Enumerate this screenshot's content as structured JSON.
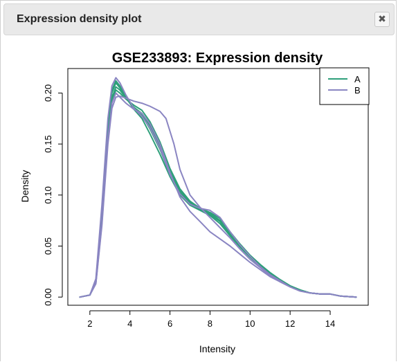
{
  "dialog": {
    "title": "Expression density plot",
    "close_icon": "close-icon",
    "close_glyph": "✖"
  },
  "chart_data": {
    "type": "line",
    "title": "GSE233893: Expression density",
    "xlabel": "Intensity",
    "ylabel": "Density",
    "xlim": [
      0.9,
      15.9
    ],
    "ylim": [
      -0.008,
      0.224
    ],
    "xticks": [
      "2",
      "4",
      "6",
      "8",
      "10",
      "12",
      "14"
    ],
    "yticks": [
      "0.00",
      "0.05",
      "0.10",
      "0.15",
      "0.20"
    ],
    "legend_position": "top-right",
    "legend": [
      {
        "name": "A",
        "color": "#2E9F7A"
      },
      {
        "name": "B",
        "color": "#8A85C2"
      }
    ],
    "series": [
      {
        "name": "A",
        "color": "#2E9F7A",
        "points": [
          [
            1.5,
            0
          ],
          [
            2.0,
            0.002
          ],
          [
            2.3,
            0.015
          ],
          [
            2.6,
            0.08
          ],
          [
            2.9,
            0.165
          ],
          [
            3.1,
            0.2
          ],
          [
            3.3,
            0.21
          ],
          [
            3.5,
            0.205
          ],
          [
            3.8,
            0.195
          ],
          [
            4.2,
            0.185
          ],
          [
            4.6,
            0.178
          ],
          [
            5.0,
            0.165
          ],
          [
            5.5,
            0.145
          ],
          [
            6.0,
            0.12
          ],
          [
            6.5,
            0.102
          ],
          [
            7.0,
            0.092
          ],
          [
            7.5,
            0.086
          ],
          [
            8.0,
            0.082
          ],
          [
            8.5,
            0.075
          ],
          [
            9.0,
            0.062
          ],
          [
            9.5,
            0.05
          ],
          [
            10.0,
            0.04
          ],
          [
            10.5,
            0.031
          ],
          [
            11.0,
            0.023
          ],
          [
            11.5,
            0.017
          ],
          [
            12.0,
            0.011
          ],
          [
            12.5,
            0.007
          ],
          [
            13.0,
            0.004
          ],
          [
            13.5,
            0.003
          ],
          [
            14.0,
            0.003
          ],
          [
            14.5,
            0.001
          ],
          [
            15.3,
            0
          ]
        ]
      },
      {
        "name": "A",
        "color": "#2E9F7A",
        "points": [
          [
            1.5,
            0
          ],
          [
            2.0,
            0.002
          ],
          [
            2.3,
            0.016
          ],
          [
            2.6,
            0.085
          ],
          [
            2.9,
            0.17
          ],
          [
            3.1,
            0.203
          ],
          [
            3.3,
            0.212
          ],
          [
            3.5,
            0.207
          ],
          [
            3.8,
            0.196
          ],
          [
            4.2,
            0.184
          ],
          [
            4.6,
            0.175
          ],
          [
            5.0,
            0.16
          ],
          [
            5.5,
            0.14
          ],
          [
            6.0,
            0.118
          ],
          [
            6.5,
            0.1
          ],
          [
            7.0,
            0.09
          ],
          [
            7.5,
            0.085
          ],
          [
            8.0,
            0.08
          ],
          [
            8.5,
            0.072
          ],
          [
            9.0,
            0.06
          ],
          [
            9.5,
            0.049
          ],
          [
            10.0,
            0.039
          ],
          [
            10.5,
            0.03
          ],
          [
            11.0,
            0.022
          ],
          [
            11.5,
            0.016
          ],
          [
            12.0,
            0.011
          ],
          [
            12.5,
            0.007
          ],
          [
            13.0,
            0.004
          ],
          [
            13.5,
            0.003
          ],
          [
            14.0,
            0.003
          ],
          [
            14.5,
            0.001
          ],
          [
            15.3,
            0
          ]
        ]
      },
      {
        "name": "A",
        "color": "#2E9F7A",
        "points": [
          [
            1.5,
            0
          ],
          [
            2.0,
            0.002
          ],
          [
            2.3,
            0.014
          ],
          [
            2.6,
            0.075
          ],
          [
            2.9,
            0.158
          ],
          [
            3.1,
            0.192
          ],
          [
            3.3,
            0.203
          ],
          [
            3.5,
            0.2
          ],
          [
            3.8,
            0.194
          ],
          [
            4.2,
            0.188
          ],
          [
            4.6,
            0.183
          ],
          [
            5.0,
            0.172
          ],
          [
            5.5,
            0.152
          ],
          [
            6.0,
            0.126
          ],
          [
            6.5,
            0.106
          ],
          [
            7.0,
            0.094
          ],
          [
            7.5,
            0.087
          ],
          [
            8.0,
            0.083
          ],
          [
            8.5,
            0.077
          ],
          [
            9.0,
            0.064
          ],
          [
            9.5,
            0.052
          ],
          [
            10.0,
            0.041
          ],
          [
            10.5,
            0.032
          ],
          [
            11.0,
            0.024
          ],
          [
            11.5,
            0.017
          ],
          [
            12.0,
            0.011
          ],
          [
            12.5,
            0.007
          ],
          [
            13.0,
            0.004
          ],
          [
            13.5,
            0.003
          ],
          [
            14.0,
            0.003
          ],
          [
            14.5,
            0.001
          ],
          [
            15.3,
            0
          ]
        ]
      },
      {
        "name": "A",
        "color": "#2E9F7A",
        "points": [
          [
            1.5,
            0
          ],
          [
            2.0,
            0.002
          ],
          [
            2.3,
            0.015
          ],
          [
            2.6,
            0.078
          ],
          [
            2.9,
            0.16
          ],
          [
            3.1,
            0.195
          ],
          [
            3.3,
            0.206
          ],
          [
            3.5,
            0.203
          ],
          [
            3.8,
            0.195
          ],
          [
            4.2,
            0.186
          ],
          [
            4.6,
            0.18
          ],
          [
            5.0,
            0.168
          ],
          [
            5.5,
            0.148
          ],
          [
            6.0,
            0.123
          ],
          [
            6.5,
            0.104
          ],
          [
            7.0,
            0.093
          ],
          [
            7.5,
            0.086
          ],
          [
            8.0,
            0.081
          ],
          [
            8.5,
            0.074
          ],
          [
            9.0,
            0.061
          ],
          [
            9.5,
            0.05
          ],
          [
            10.0,
            0.04
          ],
          [
            10.5,
            0.031
          ],
          [
            11.0,
            0.023
          ],
          [
            11.5,
            0.017
          ],
          [
            12.0,
            0.011
          ],
          [
            12.5,
            0.007
          ],
          [
            13.0,
            0.004
          ],
          [
            13.5,
            0.003
          ],
          [
            14.0,
            0.003
          ],
          [
            14.5,
            0.001
          ],
          [
            15.3,
            0
          ]
        ]
      },
      {
        "name": "B",
        "color": "#8A85C2",
        "points": [
          [
            1.5,
            0
          ],
          [
            2.0,
            0.002
          ],
          [
            2.3,
            0.018
          ],
          [
            2.6,
            0.09
          ],
          [
            2.9,
            0.175
          ],
          [
            3.1,
            0.207
          ],
          [
            3.3,
            0.215
          ],
          [
            3.5,
            0.21
          ],
          [
            3.8,
            0.198
          ],
          [
            4.2,
            0.185
          ],
          [
            4.6,
            0.177
          ],
          [
            5.0,
            0.166
          ],
          [
            5.5,
            0.146
          ],
          [
            6.0,
            0.12
          ],
          [
            6.5,
            0.101
          ],
          [
            7.0,
            0.091
          ],
          [
            7.5,
            0.087
          ],
          [
            8.0,
            0.085
          ],
          [
            8.5,
            0.078
          ],
          [
            9.0,
            0.064
          ],
          [
            9.5,
            0.051
          ],
          [
            10.0,
            0.04
          ],
          [
            10.5,
            0.03
          ],
          [
            11.0,
            0.022
          ],
          [
            11.5,
            0.016
          ],
          [
            12.0,
            0.01
          ],
          [
            12.5,
            0.006
          ],
          [
            13.0,
            0.004
          ],
          [
            13.5,
            0.003
          ],
          [
            14.0,
            0.003
          ],
          [
            14.5,
            0.001
          ],
          [
            15.3,
            0
          ]
        ]
      },
      {
        "name": "B",
        "color": "#8A85C2",
        "points": [
          [
            1.5,
            0
          ],
          [
            2.0,
            0.002
          ],
          [
            2.3,
            0.013
          ],
          [
            2.6,
            0.07
          ],
          [
            2.9,
            0.15
          ],
          [
            3.1,
            0.185
          ],
          [
            3.3,
            0.196
          ],
          [
            3.5,
            0.197
          ],
          [
            3.8,
            0.195
          ],
          [
            4.2,
            0.192
          ],
          [
            4.6,
            0.19
          ],
          [
            5.0,
            0.187
          ],
          [
            5.5,
            0.182
          ],
          [
            5.8,
            0.175
          ],
          [
            6.2,
            0.15
          ],
          [
            6.5,
            0.125
          ],
          [
            7.0,
            0.1
          ],
          [
            7.5,
            0.088
          ],
          [
            8.0,
            0.078
          ],
          [
            8.5,
            0.068
          ],
          [
            9.0,
            0.058
          ],
          [
            9.5,
            0.047
          ],
          [
            10.0,
            0.037
          ],
          [
            10.5,
            0.029
          ],
          [
            11.0,
            0.021
          ],
          [
            11.5,
            0.015
          ],
          [
            12.0,
            0.01
          ],
          [
            12.5,
            0.006
          ],
          [
            13.0,
            0.004
          ],
          [
            13.5,
            0.003
          ],
          [
            14.0,
            0.003
          ],
          [
            14.5,
            0.001
          ],
          [
            15.3,
            0
          ]
        ]
      },
      {
        "name": "B",
        "color": "#8A85C2",
        "points": [
          [
            1.5,
            0
          ],
          [
            2.0,
            0.002
          ],
          [
            2.3,
            0.014
          ],
          [
            2.6,
            0.072
          ],
          [
            2.9,
            0.155
          ],
          [
            3.1,
            0.19
          ],
          [
            3.3,
            0.2
          ],
          [
            3.5,
            0.196
          ],
          [
            3.8,
            0.19
          ],
          [
            4.2,
            0.184
          ],
          [
            4.6,
            0.18
          ],
          [
            5.0,
            0.17
          ],
          [
            5.5,
            0.15
          ],
          [
            6.0,
            0.122
          ],
          [
            6.5,
            0.098
          ],
          [
            7.0,
            0.084
          ],
          [
            7.5,
            0.074
          ],
          [
            8.0,
            0.064
          ],
          [
            8.5,
            0.057
          ],
          [
            9.0,
            0.05
          ],
          [
            9.5,
            0.042
          ],
          [
            10.0,
            0.034
          ],
          [
            10.5,
            0.027
          ],
          [
            11.0,
            0.02
          ],
          [
            11.5,
            0.015
          ],
          [
            12.0,
            0.01
          ],
          [
            12.5,
            0.006
          ],
          [
            13.0,
            0.004
          ],
          [
            13.5,
            0.003
          ],
          [
            14.0,
            0.003
          ],
          [
            14.5,
            0.001
          ],
          [
            15.3,
            0
          ]
        ]
      }
    ]
  }
}
